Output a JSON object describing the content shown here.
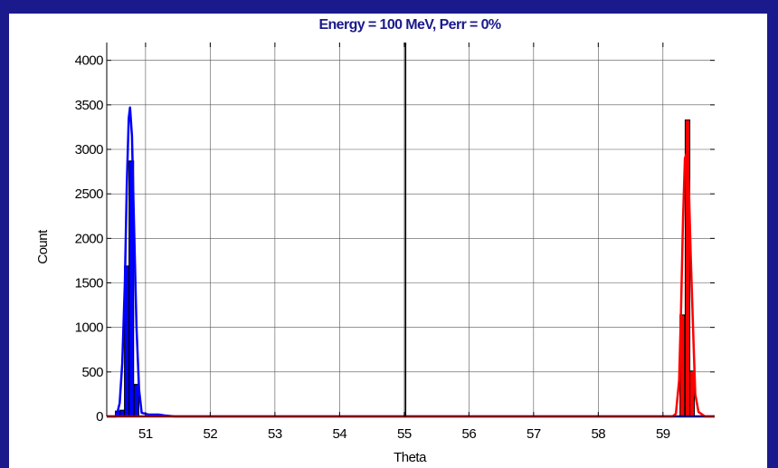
{
  "chart_data": {
    "type": "bar",
    "title": "Energy = 100 MeV,  Perr = 0%",
    "xlabel": "Theta",
    "ylabel": "Count",
    "xlim": [
      50.4,
      59.8
    ],
    "ylim": [
      0,
      4200
    ],
    "xticks": [
      51,
      52,
      53,
      54,
      55,
      56,
      57,
      58,
      59
    ],
    "yticks": [
      0,
      500,
      1000,
      1500,
      2000,
      2500,
      3000,
      3500,
      4000
    ],
    "grid": true,
    "vline_x": 55.02,
    "bin_width": 0.072,
    "series": [
      {
        "color": "#0000ff",
        "histogram": [
          {
            "x": 50.57,
            "y": 60
          },
          {
            "x": 50.64,
            "y": 70
          },
          {
            "x": 50.71,
            "y": 1690
          },
          {
            "x": 50.78,
            "y": 2870
          },
          {
            "x": 50.86,
            "y": 360
          }
        ],
        "fit_curve": [
          [
            50.4,
            0
          ],
          [
            50.55,
            0
          ],
          [
            50.6,
            150
          ],
          [
            50.64,
            600
          ],
          [
            50.68,
            1500
          ],
          [
            50.71,
            2600
          ],
          [
            50.74,
            3350
          ],
          [
            50.76,
            3470
          ],
          [
            50.79,
            3150
          ],
          [
            50.82,
            2200
          ],
          [
            50.86,
            1000
          ],
          [
            50.9,
            300
          ],
          [
            50.94,
            40
          ],
          [
            51.05,
            20
          ],
          [
            51.2,
            20
          ],
          [
            51.3,
            10
          ],
          [
            51.45,
            0
          ],
          [
            59.8,
            0
          ]
        ]
      },
      {
        "color": "#ff0000",
        "histogram": [
          {
            "x": 59.3,
            "y": 1140
          },
          {
            "x": 59.38,
            "y": 3330
          },
          {
            "x": 59.45,
            "y": 510
          }
        ],
        "fit_curve": [
          [
            50.4,
            0
          ],
          [
            59.05,
            0
          ],
          [
            59.15,
            0
          ],
          [
            59.2,
            30
          ],
          [
            59.25,
            400
          ],
          [
            59.28,
            1200
          ],
          [
            59.31,
            2200
          ],
          [
            59.34,
            2900
          ],
          [
            59.37,
            2960
          ],
          [
            59.4,
            2600
          ],
          [
            59.43,
            1800
          ],
          [
            59.47,
            900
          ],
          [
            59.5,
            250
          ],
          [
            59.55,
            50
          ],
          [
            59.65,
            0
          ],
          [
            59.8,
            0
          ]
        ]
      }
    ]
  }
}
